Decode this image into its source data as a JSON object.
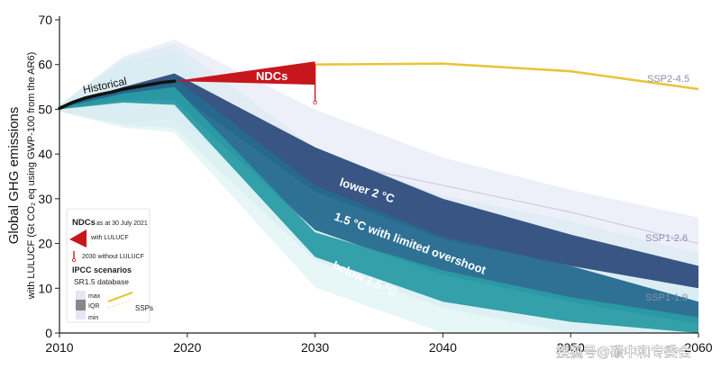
{
  "chart_data": {
    "type": "area",
    "x_ticks": [
      2010,
      2020,
      2030,
      2040,
      2050,
      2060
    ],
    "y_ticks": [
      0,
      10,
      20,
      30,
      40,
      50,
      60,
      70
    ],
    "xlim": [
      2010,
      2060
    ],
    "ylim": [
      0,
      70
    ],
    "ylabel": "Global GHG emissions",
    "ylabel2": "with LULUCF (Gt CO₂ eq using GWP-100 from the AR6)",
    "historical": {
      "name": "Historical",
      "x": [
        2010,
        2011,
        2012,
        2013,
        2014,
        2015,
        2016,
        2017,
        2018,
        2019
      ],
      "values": [
        50.2,
        51.5,
        52.5,
        53.2,
        53.8,
        54.5,
        55.0,
        55.5,
        56.0,
        56.3
      ]
    },
    "ndcs": {
      "name": "NDCs",
      "x_start": 2019,
      "x_end": 2030,
      "start_value": 56.3,
      "end_high": 60.7,
      "end_low": 55.5,
      "without_lulucf_range": [
        51.5,
        60.0
      ]
    },
    "series": [
      {
        "name": "SSP2-4.5",
        "type": "line",
        "color": "#e8c53a",
        "x": [
          2030,
          2040,
          2050,
          2060
        ],
        "values": [
          60.0,
          60.2,
          58.5,
          54.5
        ]
      },
      {
        "name": "lower 2 °C",
        "color": "#2f4d7c",
        "x": [
          2010,
          2015,
          2019,
          2030,
          2040,
          2050,
          2060
        ],
        "upper": [
          50.5,
          55.0,
          58.0,
          41.5,
          30.0,
          22.0,
          15.0
        ],
        "lower": [
          50.0,
          52.5,
          54.0,
          31.5,
          21.0,
          15.0,
          10.0
        ]
      },
      {
        "name": "1.5 °C with limited overshoot",
        "color": "#266a8e",
        "x": [
          2010,
          2015,
          2019,
          2030,
          2040,
          2050,
          2060
        ],
        "upper": [
          50.5,
          54.5,
          57.0,
          33.0,
          21.5,
          15.0,
          7.0
        ],
        "lower": [
          50.0,
          52.0,
          52.0,
          23.0,
          13.0,
          7.0,
          2.0
        ]
      },
      {
        "name": "below 1.5 °C",
        "color": "#2a9ba4",
        "x": [
          2010,
          2015,
          2019,
          2030,
          2040,
          2050,
          2060
        ],
        "upper": [
          50.3,
          53.5,
          55.0,
          22.5,
          14.0,
          8.0,
          3.5
        ],
        "lower": [
          50.0,
          51.5,
          51.0,
          17.0,
          7.0,
          2.5,
          0.0
        ]
      }
    ],
    "ssp_labels": [
      "SSP2-4.5",
      "SSP1-2.6",
      "SSP1-1.9"
    ],
    "ssp1_26": {
      "x": [
        2030,
        2040,
        2050,
        2060
      ],
      "values": [
        39.0,
        33.0,
        27.0,
        20.0
      ]
    },
    "ssp1_19": {
      "x": [
        2030,
        2040,
        2050,
        2060
      ],
      "values": [
        27.0,
        16.0,
        11.0,
        6.0
      ]
    },
    "legend": {
      "ndcs_title": "NDCs",
      "ndcs_subtitle": "as at 30 July 2021",
      "with_lulucf": "with LULUCF",
      "without_lulucf": "2030 without LULUCF",
      "ipcc_title": "IPCC scenarios",
      "ipcc_db": "SR1.5 database",
      "max": "max",
      "iqr": "IQR",
      "min": "min",
      "ssps": "SSPs"
    },
    "colors": {
      "ndc_red": "#c8161d",
      "ssp_yellow": "#e8c53a",
      "band_light": "#e3e6f4"
    }
  },
  "watermark": "搜狐号@碳中和专委会"
}
